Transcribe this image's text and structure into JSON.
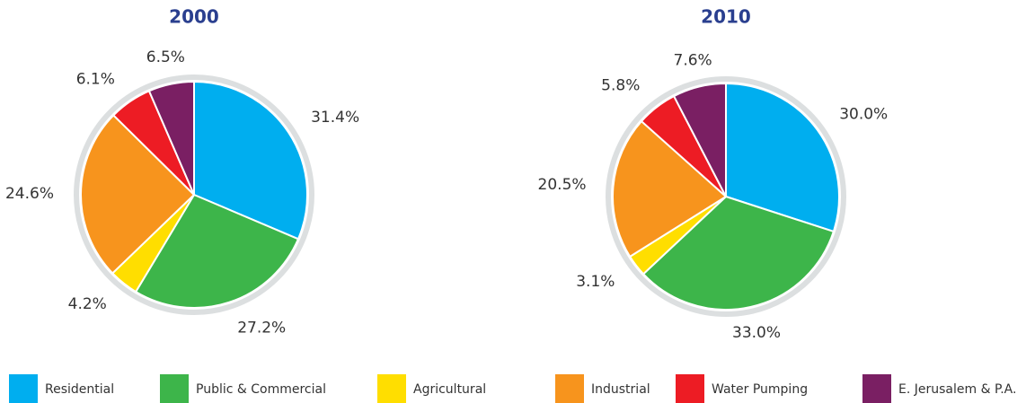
{
  "chart_data": [
    {
      "type": "pie",
      "title": "2000",
      "categories": [
        "Residential",
        "Public & Commercial",
        "Agricultural",
        "Industrial",
        "Water Pumping",
        "E. Jerusalem & P.A."
      ],
      "values": [
        31.4,
        27.2,
        4.2,
        24.6,
        6.1,
        6.5
      ],
      "value_labels": [
        "31.4%",
        "27.2%",
        "4.2%",
        "24.6%",
        "6.1%",
        "6.5%"
      ],
      "colors": [
        "#00aeef",
        "#3db54a",
        "#ffde00",
        "#f7941d",
        "#ed1c24",
        "#7a1f63"
      ]
    },
    {
      "type": "pie",
      "title": "2010",
      "categories": [
        "Residential",
        "Public & Commercial",
        "Agricultural",
        "Industrial",
        "Water Pumping",
        "E. Jerusalem & P.A."
      ],
      "values": [
        30.0,
        33.0,
        3.1,
        20.5,
        5.8,
        7.6
      ],
      "value_labels": [
        "30.0%",
        "33.0%",
        "3.1%",
        "20.5%",
        "5.8%",
        "7.6%"
      ],
      "colors": [
        "#00aeef",
        "#3db54a",
        "#ffde00",
        "#f7941d",
        "#ed1c24",
        "#7a1f63"
      ]
    }
  ]
}
